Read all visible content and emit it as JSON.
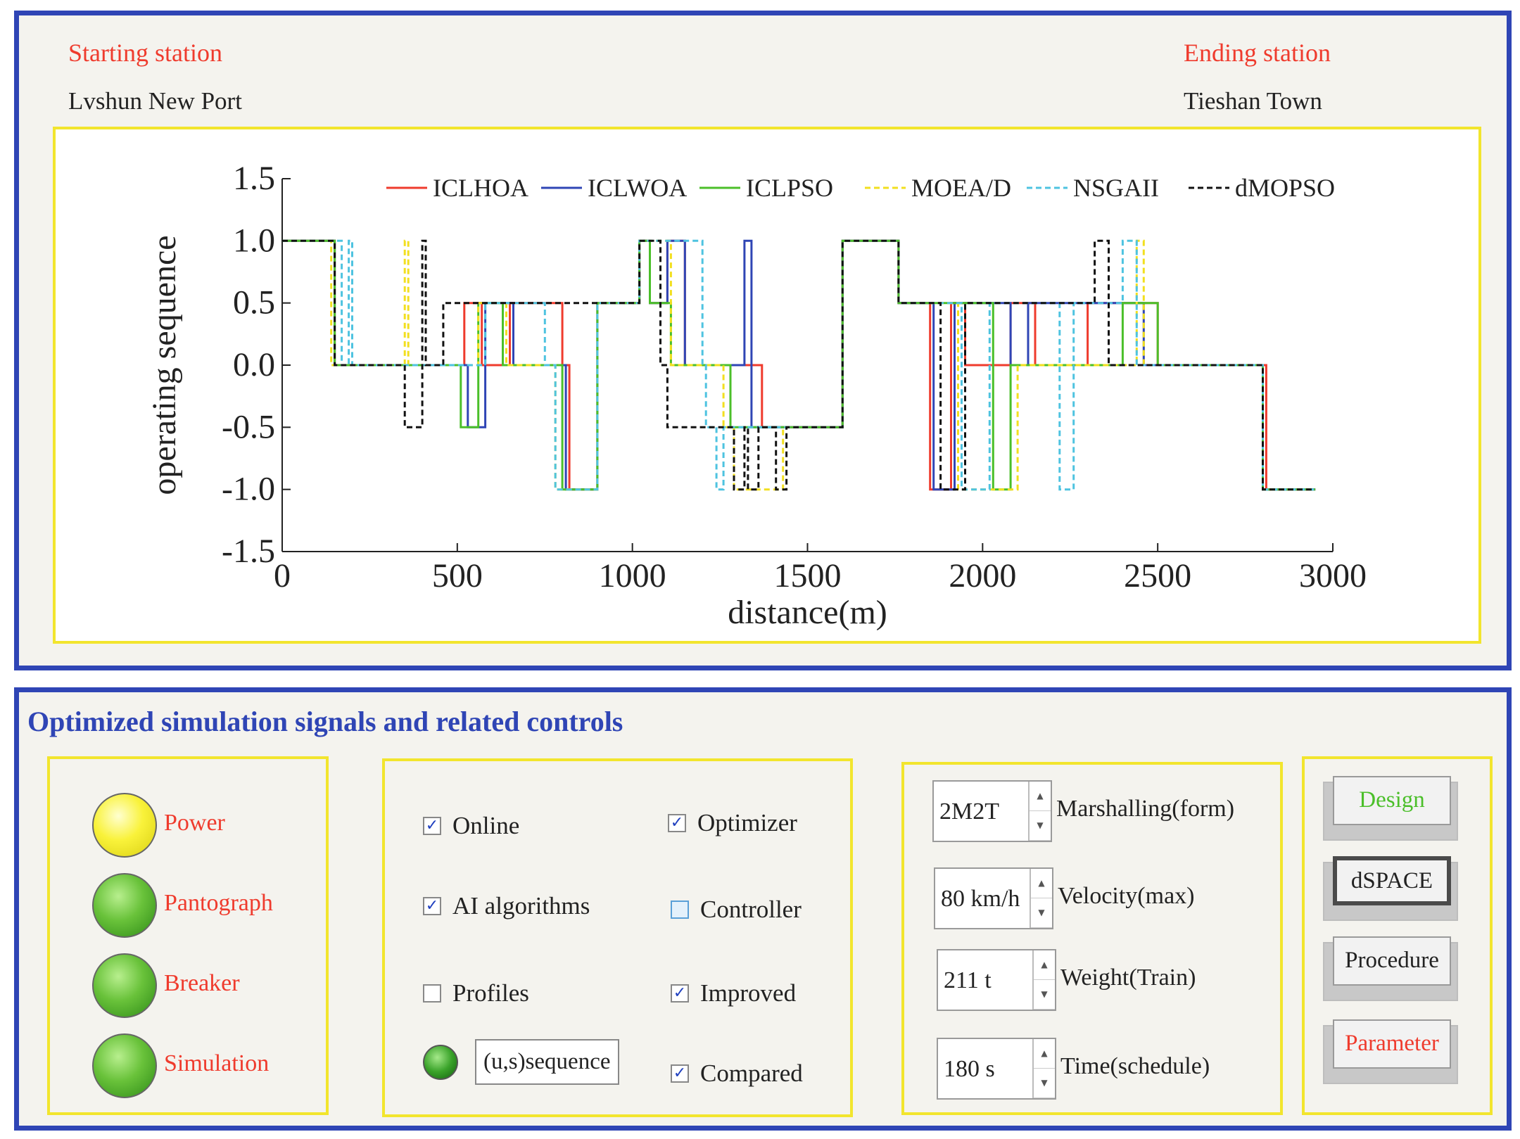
{
  "stations": {
    "start_label": "Starting station",
    "start_value": "Lvshun New Port",
    "end_label": "Ending station",
    "end_value": "Tieshan Town"
  },
  "chart_data": {
    "type": "line",
    "xlabel": "distance(m)",
    "ylabel": "operating sequence",
    "xlim": [
      0,
      3000
    ],
    "ylim": [
      -1.5,
      1.5
    ],
    "xticks": [
      0,
      500,
      1000,
      1500,
      2000,
      2500,
      3000
    ],
    "yticks": [
      "1.5",
      "1.0",
      "0.5",
      "0.0",
      "-0.5",
      "-1.0",
      "-1.5"
    ],
    "legend_position": "top",
    "series": [
      {
        "name": "ICLHOA",
        "color": "#ef3b2d",
        "dash": "",
        "x": [
          0,
          150,
          150,
          520,
          520,
          570,
          570,
          650,
          650,
          800,
          800,
          820,
          820,
          900,
          900,
          1020,
          1020,
          1050,
          1050,
          1100,
          1100,
          1150,
          1150,
          1370,
          1370,
          1430,
          1430,
          1600,
          1600,
          1760,
          1760,
          1850,
          1850,
          1910,
          1910,
          1950,
          1950,
          2080,
          2080,
          2150,
          2150,
          2300,
          2300,
          2500,
          2500,
          2810,
          2810,
          2950
        ],
        "y": [
          1,
          1,
          0,
          0,
          0.5,
          0.5,
          0,
          0,
          0.5,
          0.5,
          0,
          0,
          -1,
          -1,
          0.5,
          0.5,
          1,
          1,
          0.5,
          0.5,
          1,
          1,
          0,
          0,
          -0.5,
          -0.5,
          -0.5,
          -0.5,
          1,
          1,
          0.5,
          0.5,
          -1,
          -1,
          0.5,
          0.5,
          0,
          0,
          0.5,
          0.5,
          0,
          0,
          0.5,
          0.5,
          0,
          0,
          -1,
          -1
        ]
      },
      {
        "name": "ICLWOA",
        "color": "#2f45b5",
        "dash": "",
        "x": [
          0,
          150,
          150,
          530,
          530,
          580,
          580,
          660,
          660,
          810,
          810,
          830,
          830,
          900,
          900,
          1020,
          1020,
          1050,
          1050,
          1100,
          1100,
          1150,
          1150,
          1320,
          1320,
          1340,
          1340,
          1430,
          1430,
          1600,
          1600,
          1760,
          1760,
          1860,
          1860,
          1920,
          1920,
          2080,
          2080,
          2130,
          2130,
          2460,
          2460,
          2480,
          2480,
          2800,
          2800,
          2950
        ],
        "y": [
          1,
          1,
          0,
          0,
          -0.5,
          -0.5,
          0.5,
          0.5,
          0,
          0,
          -1,
          -1,
          -1,
          -1,
          0.5,
          0.5,
          1,
          1,
          0.5,
          0.5,
          1,
          1,
          0,
          0,
          1,
          1,
          -0.5,
          -0.5,
          -0.5,
          -0.5,
          1,
          1,
          0.5,
          0.5,
          -1,
          -1,
          0.5,
          0.5,
          0,
          0,
          0.5,
          0.5,
          0,
          0,
          0,
          0,
          -1,
          -1
        ]
      },
      {
        "name": "ICLPSO",
        "color": "#4bbf2a",
        "dash": "",
        "x": [
          0,
          150,
          150,
          510,
          510,
          560,
          560,
          630,
          630,
          780,
          780,
          800,
          800,
          900,
          900,
          1020,
          1020,
          1050,
          1050,
          1110,
          1110,
          1280,
          1280,
          1300,
          1300,
          1430,
          1430,
          1600,
          1600,
          1760,
          1760,
          1950,
          1950,
          2030,
          2030,
          2080,
          2080,
          2400,
          2400,
          2500,
          2500,
          2800,
          2800,
          2950
        ],
        "y": [
          1,
          1,
          0,
          0,
          -0.5,
          -0.5,
          0.5,
          0.5,
          0,
          0,
          0,
          0,
          -1,
          -1,
          0.5,
          0.5,
          1,
          1,
          0.5,
          0.5,
          0,
          0,
          -0.5,
          -0.5,
          -0.5,
          -0.5,
          -0.5,
          -0.5,
          1,
          1,
          0.5,
          0.5,
          0.5,
          0.5,
          -1,
          -1,
          0,
          0,
          0.5,
          0.5,
          0,
          0,
          -1,
          -1
        ]
      },
      {
        "name": "MOEA/D",
        "color": "#f2df1f",
        "dash": "8,5",
        "x": [
          0,
          140,
          140,
          350,
          350,
          360,
          360,
          560,
          560,
          640,
          640,
          780,
          780,
          800,
          800,
          900,
          900,
          1020,
          1020,
          1110,
          1110,
          1260,
          1260,
          1290,
          1290,
          1430,
          1430,
          1600,
          1600,
          1760,
          1760,
          1930,
          1930,
          2000,
          2000,
          2100,
          2100,
          2440,
          2440,
          2460,
          2460,
          2800,
          2800,
          2950
        ],
        "y": [
          1,
          1,
          0,
          0,
          1,
          1,
          0,
          0,
          0.5,
          0.5,
          0,
          0,
          -1,
          -1,
          -1,
          -1,
          0.5,
          0.5,
          1,
          1,
          0,
          0,
          -0.5,
          -0.5,
          -1,
          -1,
          -0.5,
          -0.5,
          1,
          1,
          0.5,
          0.5,
          -1,
          -1,
          -1,
          -1,
          0,
          0,
          1,
          1,
          0,
          0,
          -1,
          -1
        ]
      },
      {
        "name": "NSGAII",
        "color": "#4ec3e0",
        "dash": "8,5",
        "x": [
          0,
          170,
          170,
          190,
          190,
          200,
          200,
          580,
          580,
          750,
          750,
          780,
          780,
          900,
          900,
          1020,
          1020,
          1200,
          1200,
          1210,
          1210,
          1240,
          1240,
          1260,
          1260,
          1430,
          1430,
          1600,
          1600,
          1760,
          1760,
          1940,
          1940,
          2020,
          2020,
          2220,
          2220,
          2260,
          2260,
          2400,
          2400,
          2440,
          2440,
          2800,
          2800,
          2950
        ],
        "y": [
          1,
          1,
          0,
          0,
          1,
          1,
          0,
          0,
          0.5,
          0.5,
          0,
          0,
          -1,
          -1,
          0.5,
          0.5,
          1,
          1,
          0,
          0,
          -0.5,
          -0.5,
          -1,
          -1,
          -0.5,
          -0.5,
          -0.5,
          -0.5,
          1,
          1,
          0.5,
          0.5,
          -1,
          -1,
          0.5,
          0.5,
          -1,
          -1,
          0.5,
          0.5,
          1,
          1,
          0,
          0,
          -1,
          -1
        ]
      },
      {
        "name": "dMOPSO",
        "color": "#111111",
        "dash": "8,5",
        "x": [
          0,
          150,
          150,
          350,
          350,
          400,
          400,
          410,
          410,
          460,
          460,
          580,
          580,
          890,
          890,
          1020,
          1020,
          1080,
          1080,
          1100,
          1100,
          1290,
          1290,
          1320,
          1320,
          1330,
          1330,
          1360,
          1360,
          1410,
          1410,
          1440,
          1440,
          1600,
          1600,
          1760,
          1760,
          1880,
          1880,
          1950,
          1950,
          2320,
          2320,
          2360,
          2360,
          2500,
          2500,
          2800,
          2800,
          2950
        ],
        "y": [
          1,
          1,
          0,
          0,
          -0.5,
          -0.5,
          1,
          1,
          0,
          0,
          0.5,
          0.5,
          0.5,
          0.5,
          0.5,
          0.5,
          1,
          1,
          0,
          0,
          -0.5,
          -0.5,
          -1,
          -1,
          -0.5,
          -0.5,
          -1,
          -1,
          -0.5,
          -0.5,
          -1,
          -1,
          -0.5,
          -0.5,
          1,
          1,
          0.5,
          0.5,
          -1,
          -1,
          0.5,
          0.5,
          1,
          1,
          0,
          0,
          0,
          0,
          -1,
          -1
        ]
      }
    ]
  },
  "controls": {
    "section_title": "Optimized simulation signals and related controls",
    "indicators": [
      {
        "label": "Power",
        "color": "yellow"
      },
      {
        "label": "Pantograph",
        "color": "green"
      },
      {
        "label": "Breaker",
        "color": "green"
      },
      {
        "label": "Simulation",
        "color": "green"
      }
    ],
    "checks": {
      "online": {
        "label": "Online",
        "checked": "✓"
      },
      "ai": {
        "label": "AI algorithms",
        "checked": "✓"
      },
      "profiles": {
        "label": "Profiles",
        "checked": ""
      },
      "optimizer": {
        "label": "Optimizer",
        "checked": "✓"
      },
      "controller": {
        "label": "Controller",
        "checked": ""
      },
      "improved": {
        "label": "Improved",
        "checked": "✓"
      },
      "compared": {
        "label": "Compared",
        "checked": "✓"
      }
    },
    "sequence_box": "(u,s)sequence",
    "params": [
      {
        "value": "2M2T",
        "label": "Marshalling(form)"
      },
      {
        "value": "80 km/h",
        "label": "Velocity(max)"
      },
      {
        "value": "211 t",
        "label": "Weight(Train)"
      },
      {
        "value": "180 s",
        "label": "Time(schedule)"
      }
    ],
    "buttons": [
      {
        "label": "Design",
        "color": "#4bbf2a"
      },
      {
        "label": "dSPACE",
        "color": "#222222"
      },
      {
        "label": "Procedure",
        "color": "#222222"
      },
      {
        "label": "Parameter",
        "color": "#ef3b2d"
      }
    ]
  }
}
